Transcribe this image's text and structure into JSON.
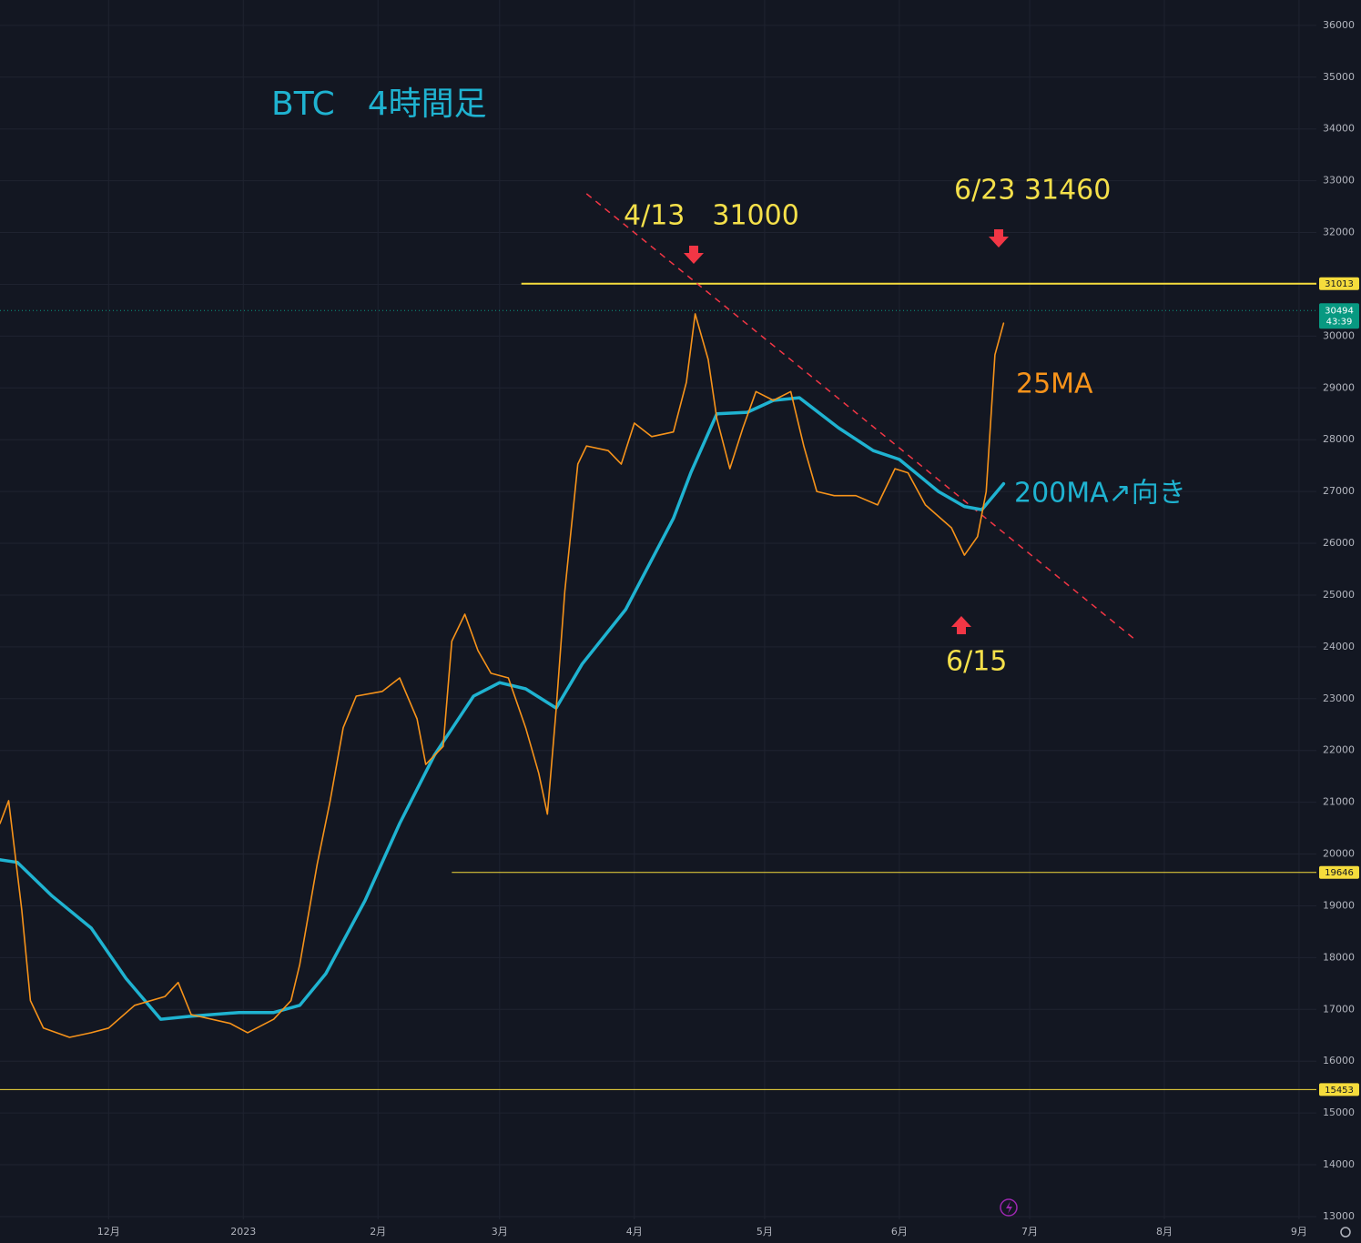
{
  "chart_data": {
    "type": "line",
    "title": "BTC　4時間足",
    "title_color": "#1fb3d1",
    "xlim": [
      "2022-11-06",
      "2023-09-05"
    ],
    "xticks": [
      {
        "value": "2022-12-01",
        "label": "12月"
      },
      {
        "value": "2023-01-01",
        "label": "2023"
      },
      {
        "value": "2023-02-01",
        "label": "2月"
      },
      {
        "value": "2023-03-01",
        "label": "3月"
      },
      {
        "value": "2023-04-01",
        "label": "4月"
      },
      {
        "value": "2023-05-01",
        "label": "5月"
      },
      {
        "value": "2023-06-01",
        "label": "6月"
      },
      {
        "value": "2023-07-01",
        "label": "7月"
      },
      {
        "value": "2023-08-01",
        "label": "8月"
      },
      {
        "value": "2023-09-01",
        "label": "9月"
      }
    ],
    "ylim": [
      12490,
      36490
    ],
    "yticks": [
      13000,
      14000,
      15000,
      16000,
      17000,
      18000,
      19000,
      20000,
      21000,
      22000,
      23000,
      24000,
      25000,
      26000,
      27000,
      28000,
      29000,
      30000,
      31000,
      32000,
      33000,
      34000,
      35000,
      36000
    ],
    "grid": true,
    "series": [
      {
        "color": "#1fb3d1",
        "width": 3.5,
        "x": [
          "2022-11-06",
          "2022-11-10",
          "2022-11-18",
          "2022-11-27",
          "2022-12-05",
          "2022-12-13",
          "2022-12-20",
          "2022-12-31",
          "2023-01-08",
          "2023-01-14",
          "2023-01-20",
          "2023-01-29",
          "2023-02-06",
          "2023-02-14",
          "2023-02-23",
          "2023-03-01",
          "2023-03-07",
          "2023-03-14",
          "2023-03-20",
          "2023-03-30",
          "2023-04-10",
          "2023-04-14",
          "2023-04-20",
          "2023-04-27",
          "2023-05-03",
          "2023-05-09",
          "2023-05-18",
          "2023-05-26",
          "2023-06-01",
          "2023-06-10",
          "2023-06-16",
          "2023-06-20",
          "2023-06-25"
        ],
        "values": [
          19890,
          19840,
          19190,
          18570,
          17600,
          16810,
          16870,
          16940,
          16940,
          17080,
          17690,
          19100,
          20590,
          21910,
          23050,
          23310,
          23190,
          22820,
          23670,
          24720,
          26480,
          27360,
          28500,
          28530,
          28760,
          28810,
          28230,
          27790,
          27620,
          27000,
          26710,
          26650,
          27150
        ]
      },
      {
        "name": "25MA",
        "color": "#f7931a",
        "width": 1.6,
        "x": [
          "2022-11-06",
          "2022-11-08",
          "2022-11-11",
          "2022-11-13",
          "2022-11-16",
          "2022-11-22",
          "2022-11-27",
          "2022-12-01",
          "2022-12-07",
          "2022-12-14",
          "2022-12-17",
          "2022-12-20",
          "2022-12-29",
          "2023-01-02",
          "2023-01-08",
          "2023-01-12",
          "2023-01-14",
          "2023-01-18",
          "2023-01-21",
          "2023-01-24",
          "2023-01-27",
          "2023-02-02",
          "2023-02-06",
          "2023-02-10",
          "2023-02-12",
          "2023-02-16",
          "2023-02-18",
          "2023-02-21",
          "2023-02-24",
          "2023-02-27",
          "2023-03-03",
          "2023-03-07",
          "2023-03-10",
          "2023-03-12",
          "2023-03-14",
          "2023-03-16",
          "2023-03-19",
          "2023-03-21",
          "2023-03-26",
          "2023-03-29",
          "2023-04-01",
          "2023-04-05",
          "2023-04-10",
          "2023-04-13",
          "2023-04-15",
          "2023-04-18",
          "2023-04-20",
          "2023-04-23",
          "2023-04-26",
          "2023-04-29",
          "2023-05-03",
          "2023-05-07",
          "2023-05-10",
          "2023-05-13",
          "2023-05-17",
          "2023-05-22",
          "2023-05-27",
          "2023-05-31",
          "2023-06-03",
          "2023-06-07",
          "2023-06-13",
          "2023-06-16",
          "2023-06-19",
          "2023-06-21",
          "2023-06-23",
          "2023-06-25"
        ],
        "values": [
          20590,
          21030,
          18920,
          17170,
          16640,
          16460,
          16550,
          16640,
          17080,
          17250,
          17520,
          16900,
          16730,
          16550,
          16810,
          17170,
          17870,
          19800,
          21030,
          22440,
          23050,
          23140,
          23400,
          22610,
          21730,
          22080,
          24110,
          24630,
          23930,
          23490,
          23400,
          22440,
          21560,
          20770,
          22790,
          25070,
          27530,
          27880,
          27790,
          27530,
          28320,
          28060,
          28150,
          29110,
          30430,
          29550,
          28410,
          27440,
          28230,
          28930,
          28760,
          28930,
          27880,
          27000,
          26920,
          26920,
          26740,
          27440,
          27360,
          26740,
          26300,
          25770,
          26130,
          27000,
          29640,
          30250
        ]
      }
    ],
    "hlines": [
      {
        "value": 31013,
        "from": "2023-03-06",
        "color": "#f5dc3c",
        "width": 2
      },
      {
        "value": 19646,
        "from": "2023-02-18",
        "color": "#f5dc3c",
        "width": 1
      },
      {
        "value": 15453,
        "color": "#f5dc3c",
        "width": 1
      }
    ],
    "trendline": {
      "x": [
        "2023-03-21",
        "2023-07-25"
      ],
      "values": [
        32750,
        24160
      ],
      "color": "#f23645"
    },
    "price": {
      "value": 30494,
      "countdown": "43:39",
      "color": "#089981"
    },
    "annotations": [
      {
        "text": "4/13　31000",
        "color": "#f5e04a"
      },
      {
        "text": "6/23 31460",
        "color": "#f5e04a"
      },
      {
        "text": "6/15",
        "color": "#f5e04a"
      },
      {
        "text": "25MA",
        "color": "#f7931a"
      },
      {
        "text": "200MA↗向き",
        "color": "#1fb3d1"
      }
    ]
  }
}
